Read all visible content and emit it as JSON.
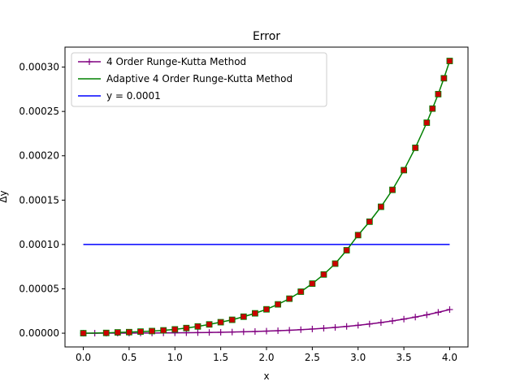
{
  "chart_data": {
    "type": "line",
    "title": "Error",
    "xlabel": "x",
    "ylabel": "Δy",
    "xlim": [
      -0.2,
      4.2
    ],
    "ylim": [
      -1.55e-05,
      0.0003225
    ],
    "grid": false,
    "legend_position": "top-left",
    "x_ticks": [
      "0.0",
      "0.5",
      "1.0",
      "1.5",
      "2.0",
      "2.5",
      "3.0",
      "3.5",
      "4.0"
    ],
    "x_tick_values": [
      0,
      0.5,
      1,
      1.5,
      2,
      2.5,
      3,
      3.5,
      4
    ],
    "y_ticks": [
      "0.00000",
      "0.00005",
      "0.00010",
      "0.00015",
      "0.00020",
      "0.00025",
      "0.00030"
    ],
    "y_tick_values": [
      0,
      5e-05,
      0.0001,
      0.00015,
      0.0002,
      0.00025,
      0.0003
    ],
    "series": [
      {
        "name": "4 Order Runge-Kutta Method",
        "color": "#800080",
        "marker": "plus",
        "x": [
          0,
          0.125,
          0.25,
          0.375,
          0.5,
          0.625,
          0.75,
          0.875,
          1,
          1.125,
          1.25,
          1.375,
          1.5,
          1.625,
          1.75,
          1.875,
          2,
          2.125,
          2.25,
          2.375,
          2.5,
          2.625,
          2.75,
          2.875,
          3,
          3.125,
          3.25,
          3.375,
          3.5,
          3.625,
          3.75,
          3.875,
          4
        ],
        "y": [
          0,
          1e-08,
          3e-08,
          6e-08,
          1e-07,
          1.5e-07,
          2.2e-07,
          3e-07,
          4e-07,
          5.2e-07,
          6.6e-07,
          8.3e-07,
          1.04e-06,
          1.28e-06,
          1.57e-06,
          1.91e-06,
          2.31e-06,
          2.78e-06,
          3.33e-06,
          3.97e-06,
          4.71e-06,
          5.56e-06,
          6.54e-06,
          7.65e-06,
          8.92e-06,
          1.036e-05,
          1.199e-05,
          1.382e-05,
          1.587e-05,
          1.816e-05,
          2.071e-05,
          2.353e-05,
          2.665e-05
        ]
      },
      {
        "name": "Adaptive 4 Order Runge-Kutta Method",
        "color": "#008000",
        "marker": "square",
        "marker_color": "#cc0000",
        "x": [
          0,
          0.25,
          0.375,
          0.5,
          0.625,
          0.75,
          0.875,
          1,
          1.125,
          1.25,
          1.375,
          1.5,
          1.625,
          1.75,
          1.875,
          2,
          2.125,
          2.25,
          2.375,
          2.5,
          2.625,
          2.75,
          2.875,
          3,
          3.125,
          3.25,
          3.375,
          3.5,
          3.625,
          3.75,
          3.812,
          3.875,
          3.937,
          4
        ],
        "y": [
          0,
          3e-07,
          9e-07,
          1.2e-06,
          1.8e-06,
          2.4e-06,
          3.2e-06,
          4.3e-06,
          5.8e-06,
          7.6e-06,
          9.9e-06,
          1.24e-05,
          1.51e-05,
          1.86e-05,
          2.24e-05,
          2.69e-05,
          3.25e-05,
          3.89e-05,
          4.68e-05,
          5.59e-05,
          6.62e-05,
          7.84e-05,
          9.35e-05,
          0.0001106,
          0.0001257,
          0.0001425,
          0.0001616,
          0.0001838,
          0.000209,
          0.0002373,
          0.0002532,
          0.0002695,
          0.0002874,
          0.0003069
        ]
      },
      {
        "name": "y = 0.0001",
        "color": "#0000ff",
        "marker": "none",
        "x": [
          0,
          4
        ],
        "y": [
          0.0001,
          0.0001
        ]
      }
    ]
  }
}
